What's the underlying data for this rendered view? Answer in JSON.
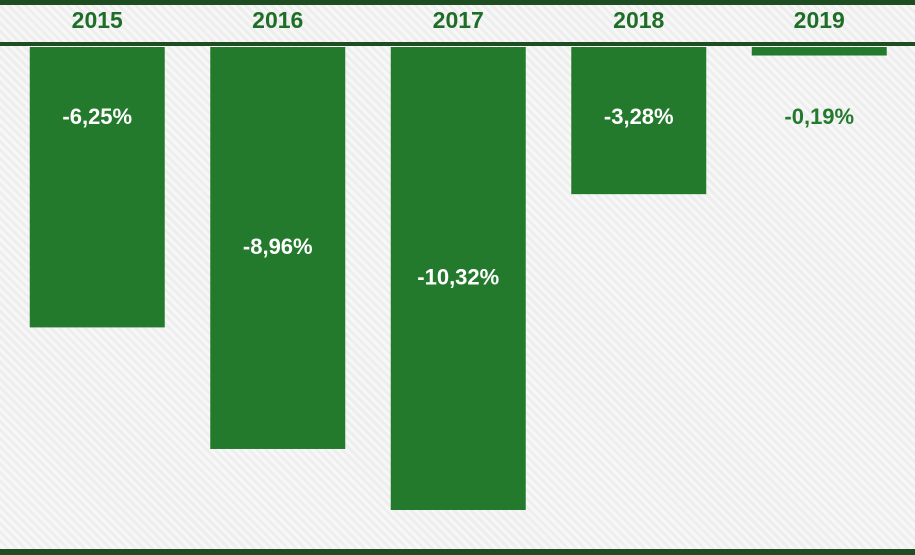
{
  "chart_data": {
    "type": "bar",
    "categories": [
      "2015",
      "2016",
      "2017",
      "2018",
      "2019"
    ],
    "values": [
      -6.25,
      -8.96,
      -10.32,
      -3.28,
      -0.19
    ],
    "value_labels": [
      "-6,25%",
      "-8,96%",
      "-10,32%",
      "-3,28%",
      "-0,19%"
    ],
    "color": "#237a2d"
  }
}
